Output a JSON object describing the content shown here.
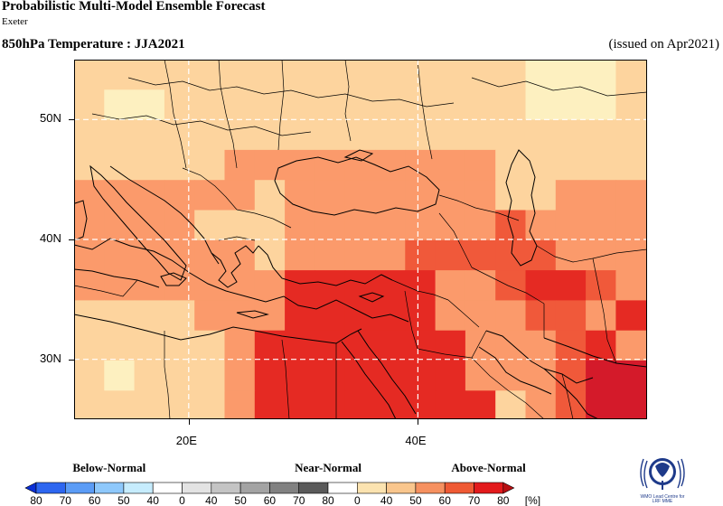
{
  "header": {
    "title": "Probabilistic Multi-Model Ensemble Forecast",
    "center": "Exeter",
    "variable": "850hPa Temperature : JJA2021",
    "issued": "(issued on Apr2021)"
  },
  "map": {
    "lon_range": [
      10,
      60
    ],
    "lat_range": [
      25,
      55
    ],
    "lat_ticks": [
      "50N",
      "40N",
      "30N"
    ],
    "lon_ticks": [
      "20E",
      "40E"
    ],
    "gridlines": "dashed"
  },
  "legend": {
    "groups": [
      "Below-Normal",
      "Near-Normal",
      "Above-Normal"
    ],
    "ticks": [
      "80",
      "70",
      "60",
      "50",
      "40",
      "0",
      "40",
      "50",
      "60",
      "70",
      "80",
      "0",
      "40",
      "50",
      "60",
      "70",
      "80"
    ],
    "unit": "[%]",
    "colors": [
      "#0a2fd6",
      "#2d66f0",
      "#5b9cf6",
      "#8ec8fb",
      "#c6ecfd",
      "#ffffff",
      "#e3e3e3",
      "#c4c4c4",
      "#a3a3a3",
      "#818181",
      "#5a5a5a",
      "#ffffff",
      "#fbe3b0",
      "#f9c68d",
      "#f69160",
      "#ef5a34",
      "#e31a1c",
      "#b80f12"
    ]
  },
  "logo": {
    "line1": "WMO Lead Centre for",
    "line2": "LRF MME"
  },
  "colors": {
    "pale": "#fdf0c0",
    "light": "#fdd49e",
    "medium": "#fb9a6b",
    "strong": "#f0593a",
    "vstrong": "#e52a23",
    "extreme": "#d41a2a"
  }
}
